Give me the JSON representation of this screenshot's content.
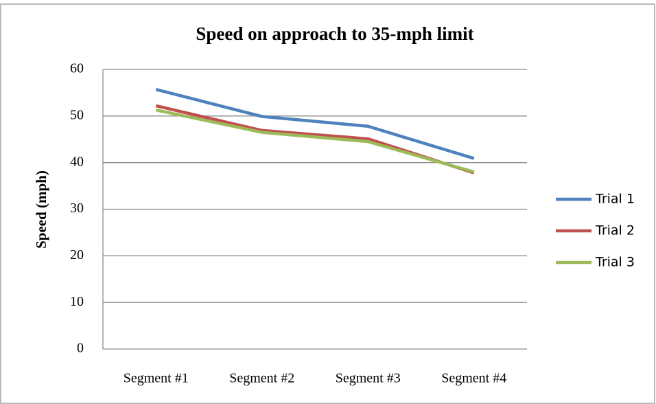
{
  "chart_data": {
    "type": "line",
    "title": "Speed on approach to 35-mph limit",
    "y_label": "Speed (mph)",
    "categories": [
      "Segment #1",
      "Segment #2",
      "Segment #3",
      "Segment #4"
    ],
    "series": [
      {
        "name": "Trial 1",
        "color": "#4f81bd",
        "values": [
          55.7,
          49.9,
          47.8,
          40.9
        ]
      },
      {
        "name": "Trial 2",
        "color": "#c0504d",
        "values": [
          52.2,
          46.9,
          45.1,
          37.8
        ]
      },
      {
        "name": "Trial 3",
        "color": "#9bbb59",
        "values": [
          51.3,
          46.5,
          44.5,
          38
        ]
      }
    ],
    "ylim": [
      0,
      60
    ],
    "yticks": [
      0,
      10,
      20,
      30,
      40,
      50,
      60
    ],
    "grid": true,
    "legend": "right"
  }
}
